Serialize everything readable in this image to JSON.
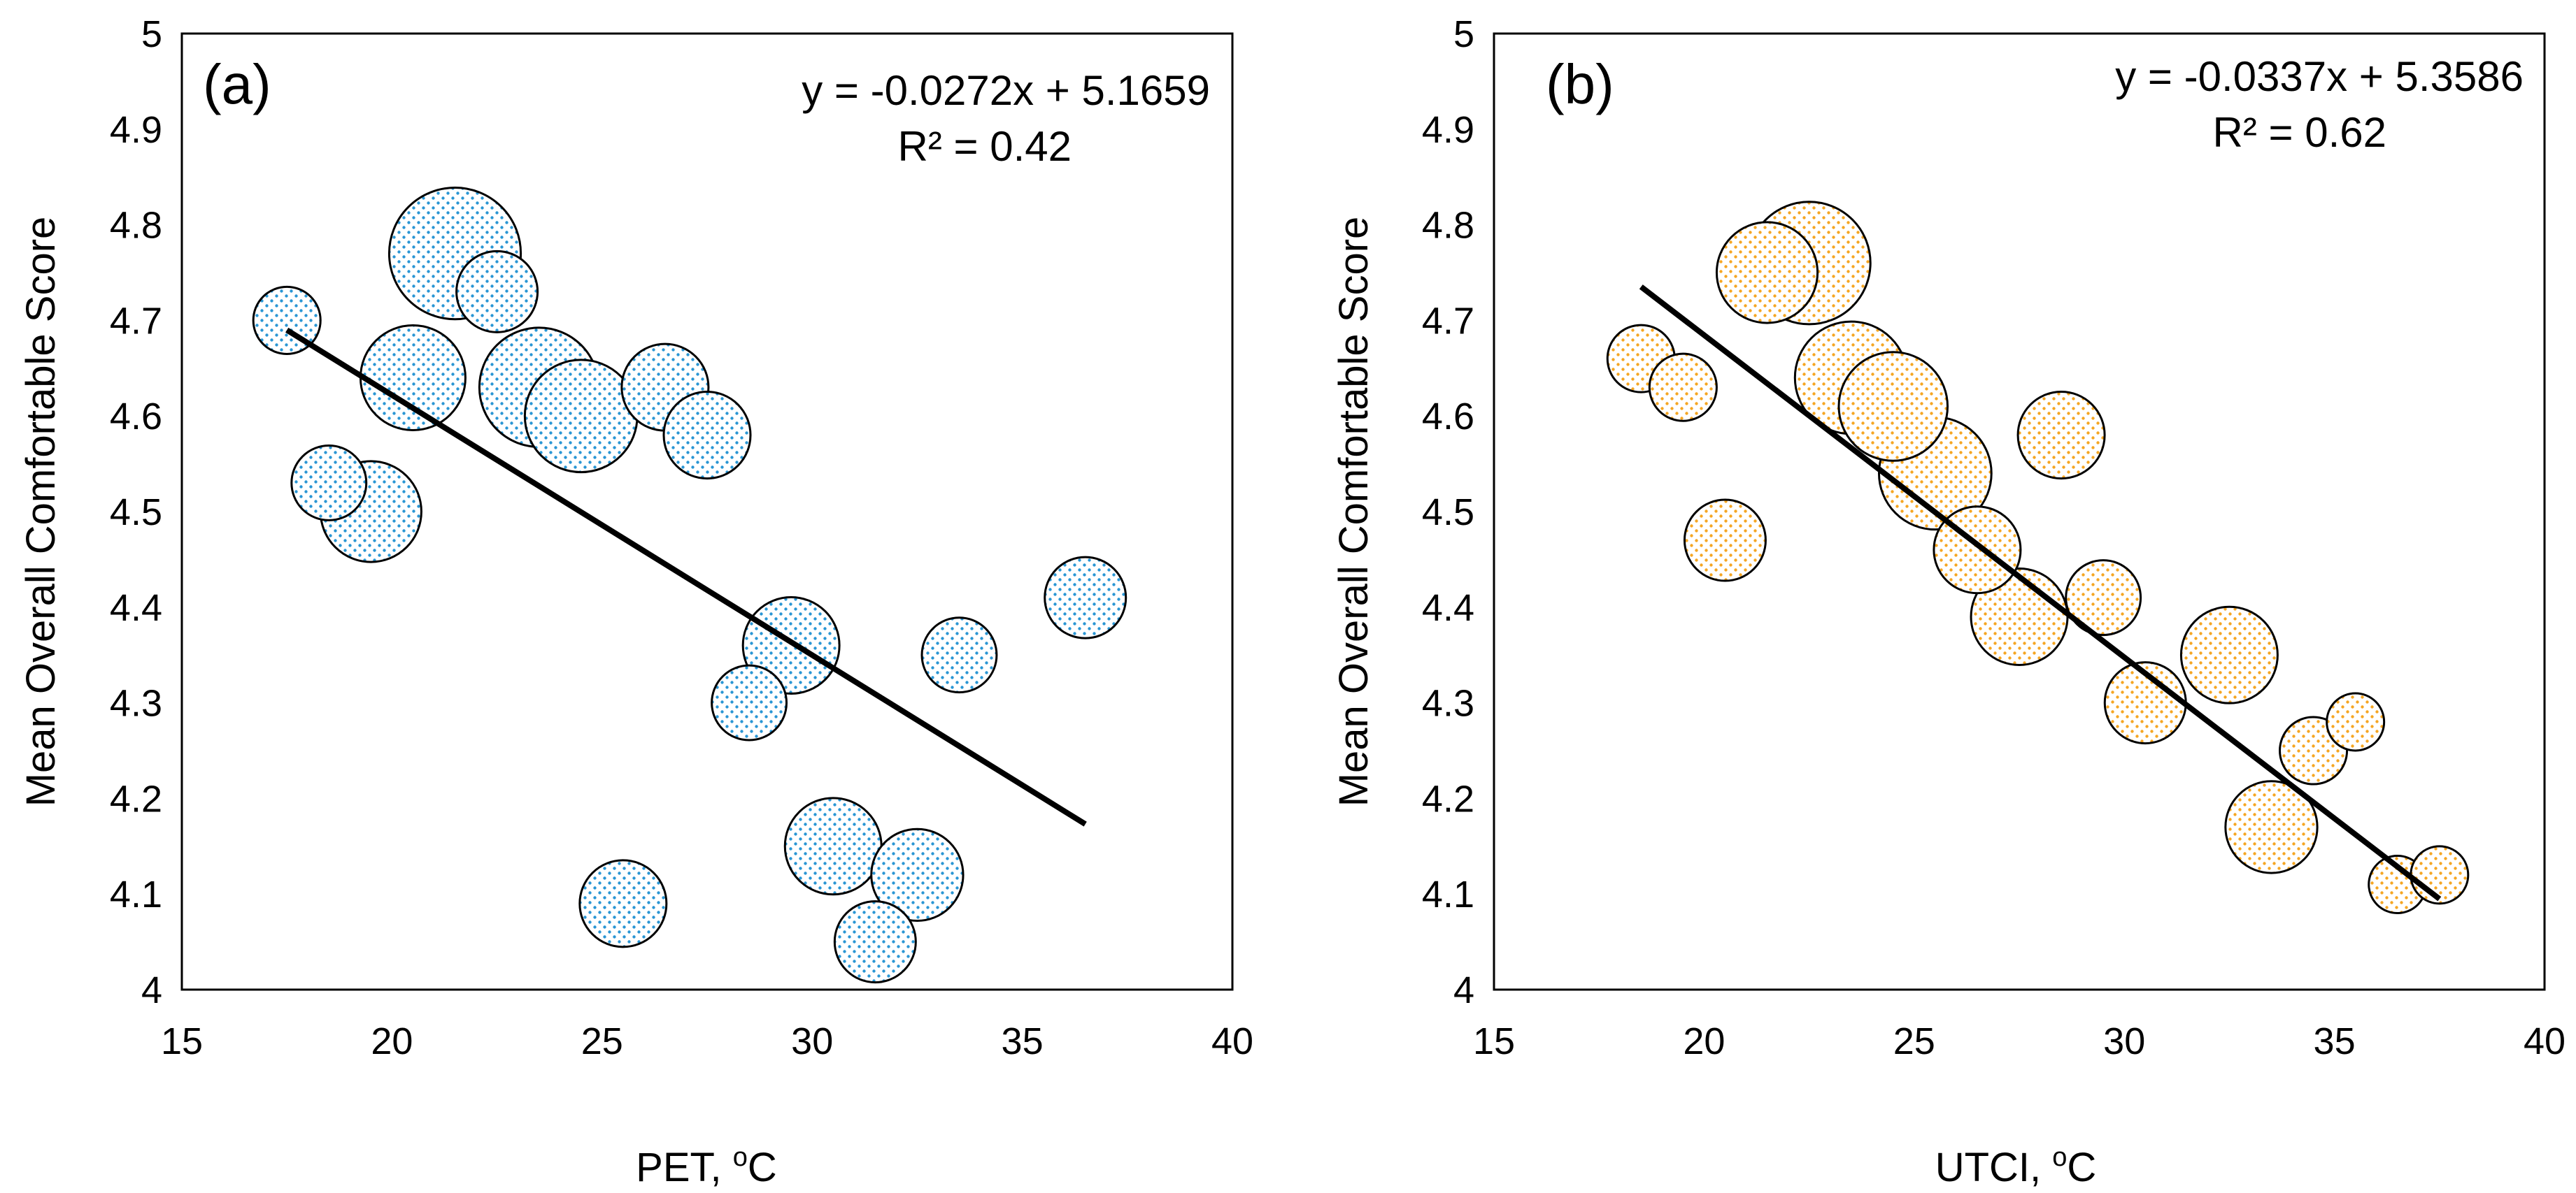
{
  "colors": {
    "dots_a": "#2a96d4",
    "dots_b": "#f5a623",
    "line": "#000000",
    "frame": "#000000"
  },
  "chart_data": [
    {
      "type": "scatter",
      "panel_label": "(a)",
      "xlabel": "PET, oC",
      "ylabel": "Mean Overall Comfortable Score",
      "xlim": [
        15,
        40
      ],
      "ylim": [
        4,
        5
      ],
      "xticks": [
        "15",
        "20",
        "25",
        "30",
        "35",
        "40"
      ],
      "yticks": [
        "4",
        "4.1",
        "4.2",
        "4.3",
        "4.4",
        "4.5",
        "4.6",
        "4.7",
        "4.8",
        "4.9",
        "5"
      ],
      "equation": "y = -0.0272x + 5.1659",
      "r2": "R² = 0.42",
      "trendline": {
        "slope": -0.0272,
        "intercept": 5.1659,
        "x_range": [
          17.5,
          36.5
        ]
      },
      "points": [
        {
          "x": 17.5,
          "y": 4.7,
          "size": 2
        },
        {
          "x": 18.5,
          "y": 4.53,
          "size": 3
        },
        {
          "x": 19.5,
          "y": 4.5,
          "size": 8
        },
        {
          "x": 20.5,
          "y": 4.64,
          "size": 9
        },
        {
          "x": 21.5,
          "y": 4.77,
          "size": 17
        },
        {
          "x": 22.5,
          "y": 4.73,
          "size": 4
        },
        {
          "x": 23.5,
          "y": 4.63,
          "size": 13
        },
        {
          "x": 24.5,
          "y": 4.6,
          "size": 11
        },
        {
          "x": 25.5,
          "y": 4.09,
          "size": 5
        },
        {
          "x": 26.5,
          "y": 4.63,
          "size": 5
        },
        {
          "x": 27.5,
          "y": 4.58,
          "size": 5
        },
        {
          "x": 28.5,
          "y": 4.3,
          "size": 3
        },
        {
          "x": 29.5,
          "y": 4.36,
          "size": 7
        },
        {
          "x": 30.5,
          "y": 4.15,
          "size": 7
        },
        {
          "x": 31.5,
          "y": 4.05,
          "size": 4
        },
        {
          "x": 32.5,
          "y": 4.12,
          "size": 6
        },
        {
          "x": 33.5,
          "y": 4.35,
          "size": 3
        },
        {
          "x": 36.5,
          "y": 4.41,
          "size": 4
        }
      ]
    },
    {
      "type": "scatter",
      "panel_label": "(b)",
      "xlabel": "UTCI, oC",
      "ylabel": "Mean Overall Comfortable Score",
      "xlim": [
        15,
        40
      ],
      "ylim": [
        4,
        5
      ],
      "xticks": [
        "15",
        "20",
        "25",
        "30",
        "35",
        "40"
      ],
      "yticks": [
        "4",
        "4.1",
        "4.2",
        "4.3",
        "4.4",
        "4.5",
        "4.6",
        "4.7",
        "4.8",
        "4.9",
        "5"
      ],
      "equation": "y = -0.0337x + 5.3586",
      "r2": "R² = 0.62",
      "trendline": {
        "slope": -0.0337,
        "intercept": 5.3586,
        "x_range": [
          18.5,
          37.5
        ]
      },
      "points": [
        {
          "x": 18.5,
          "y": 4.66,
          "size": 2
        },
        {
          "x": 19.5,
          "y": 4.63,
          "size": 2
        },
        {
          "x": 20.5,
          "y": 4.47,
          "size": 4
        },
        {
          "x": 21.5,
          "y": 4.75,
          "size": 8
        },
        {
          "x": 22.5,
          "y": 4.76,
          "size": 14
        },
        {
          "x": 23.5,
          "y": 4.64,
          "size": 11
        },
        {
          "x": 24.5,
          "y": 4.61,
          "size": 10
        },
        {
          "x": 25.5,
          "y": 4.54,
          "size": 11
        },
        {
          "x": 26.5,
          "y": 4.46,
          "size": 5
        },
        {
          "x": 27.5,
          "y": 4.39,
          "size": 7
        },
        {
          "x": 28.5,
          "y": 4.58,
          "size": 5
        },
        {
          "x": 29.5,
          "y": 4.41,
          "size": 3
        },
        {
          "x": 30.5,
          "y": 4.3,
          "size": 4
        },
        {
          "x": 32.5,
          "y": 4.35,
          "size": 7
        },
        {
          "x": 33.5,
          "y": 4.17,
          "size": 6
        },
        {
          "x": 34.5,
          "y": 4.25,
          "size": 2
        },
        {
          "x": 35.5,
          "y": 4.28,
          "size": 1
        },
        {
          "x": 36.5,
          "y": 4.11,
          "size": 1
        },
        {
          "x": 37.5,
          "y": 4.12,
          "size": 1
        }
      ]
    }
  ]
}
